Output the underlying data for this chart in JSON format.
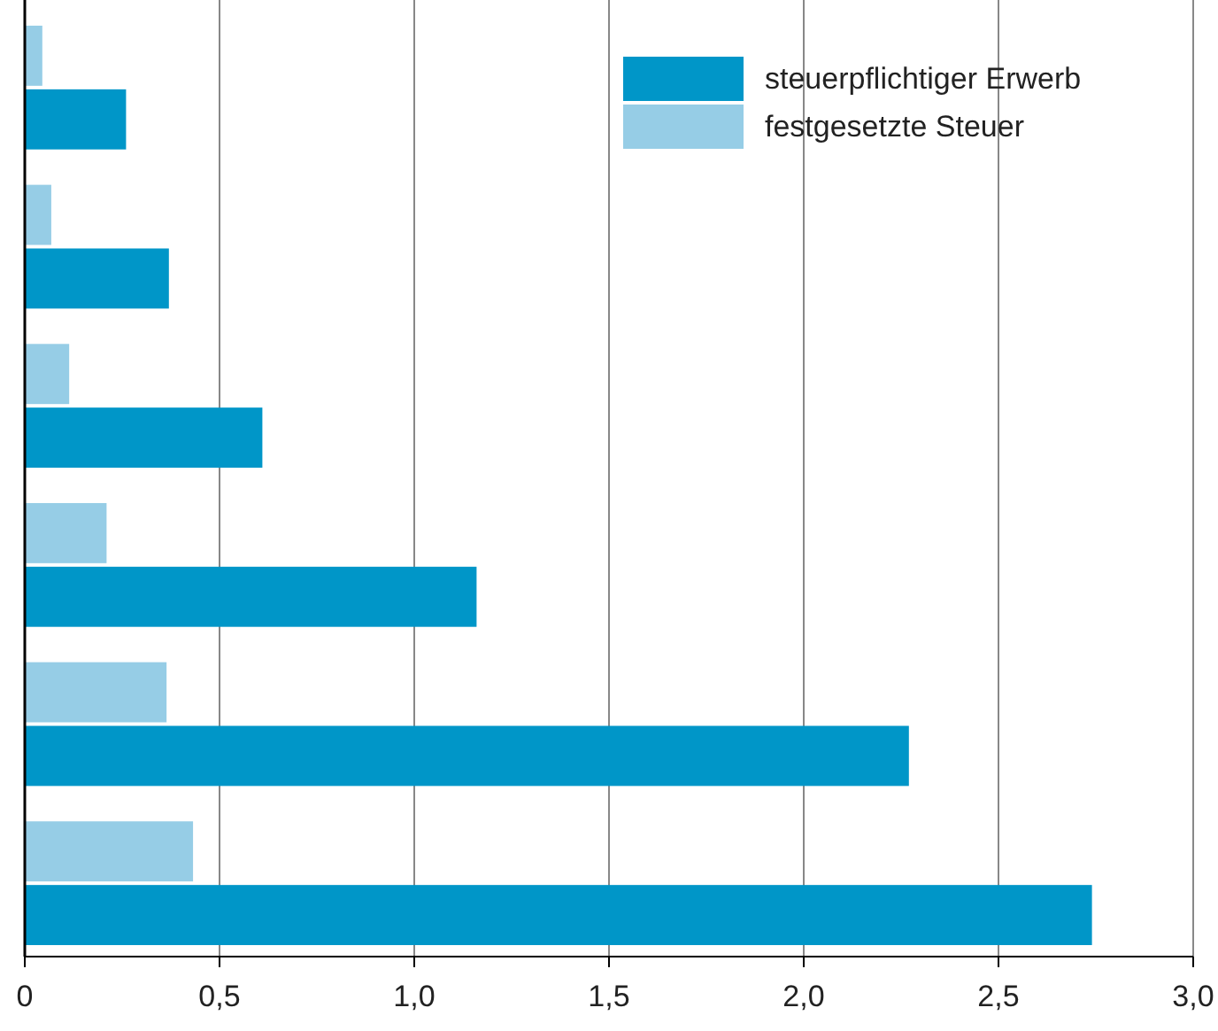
{
  "chart_data": {
    "type": "bar",
    "orientation": "horizontal",
    "categories": [
      null,
      null,
      null,
      null,
      null,
      null
    ],
    "series": [
      {
        "name": "steuerpflichtiger Erwerb",
        "color": "#0096c8",
        "values": [
          0.26,
          0.37,
          0.61,
          1.16,
          2.27,
          2.74
        ]
      },
      {
        "name": "festgesetzte Steuer",
        "color": "#96cde6",
        "values": [
          0.045,
          0.068,
          0.114,
          0.21,
          0.364,
          0.432
        ]
      }
    ],
    "xlim": [
      0,
      3
    ],
    "xticks": [
      0,
      {
        "value": 0.5,
        "label": "0,5"
      },
      {
        "value": 1,
        "label": "1,0"
      },
      {
        "value": 1.5,
        "label": "1,5"
      },
      {
        "value": 2,
        "label": "2,0"
      },
      {
        "value": 2.5,
        "label": "2,5"
      },
      {
        "value": 3,
        "label": "3,0"
      }
    ],
    "grid": "x",
    "legend": "top right"
  }
}
